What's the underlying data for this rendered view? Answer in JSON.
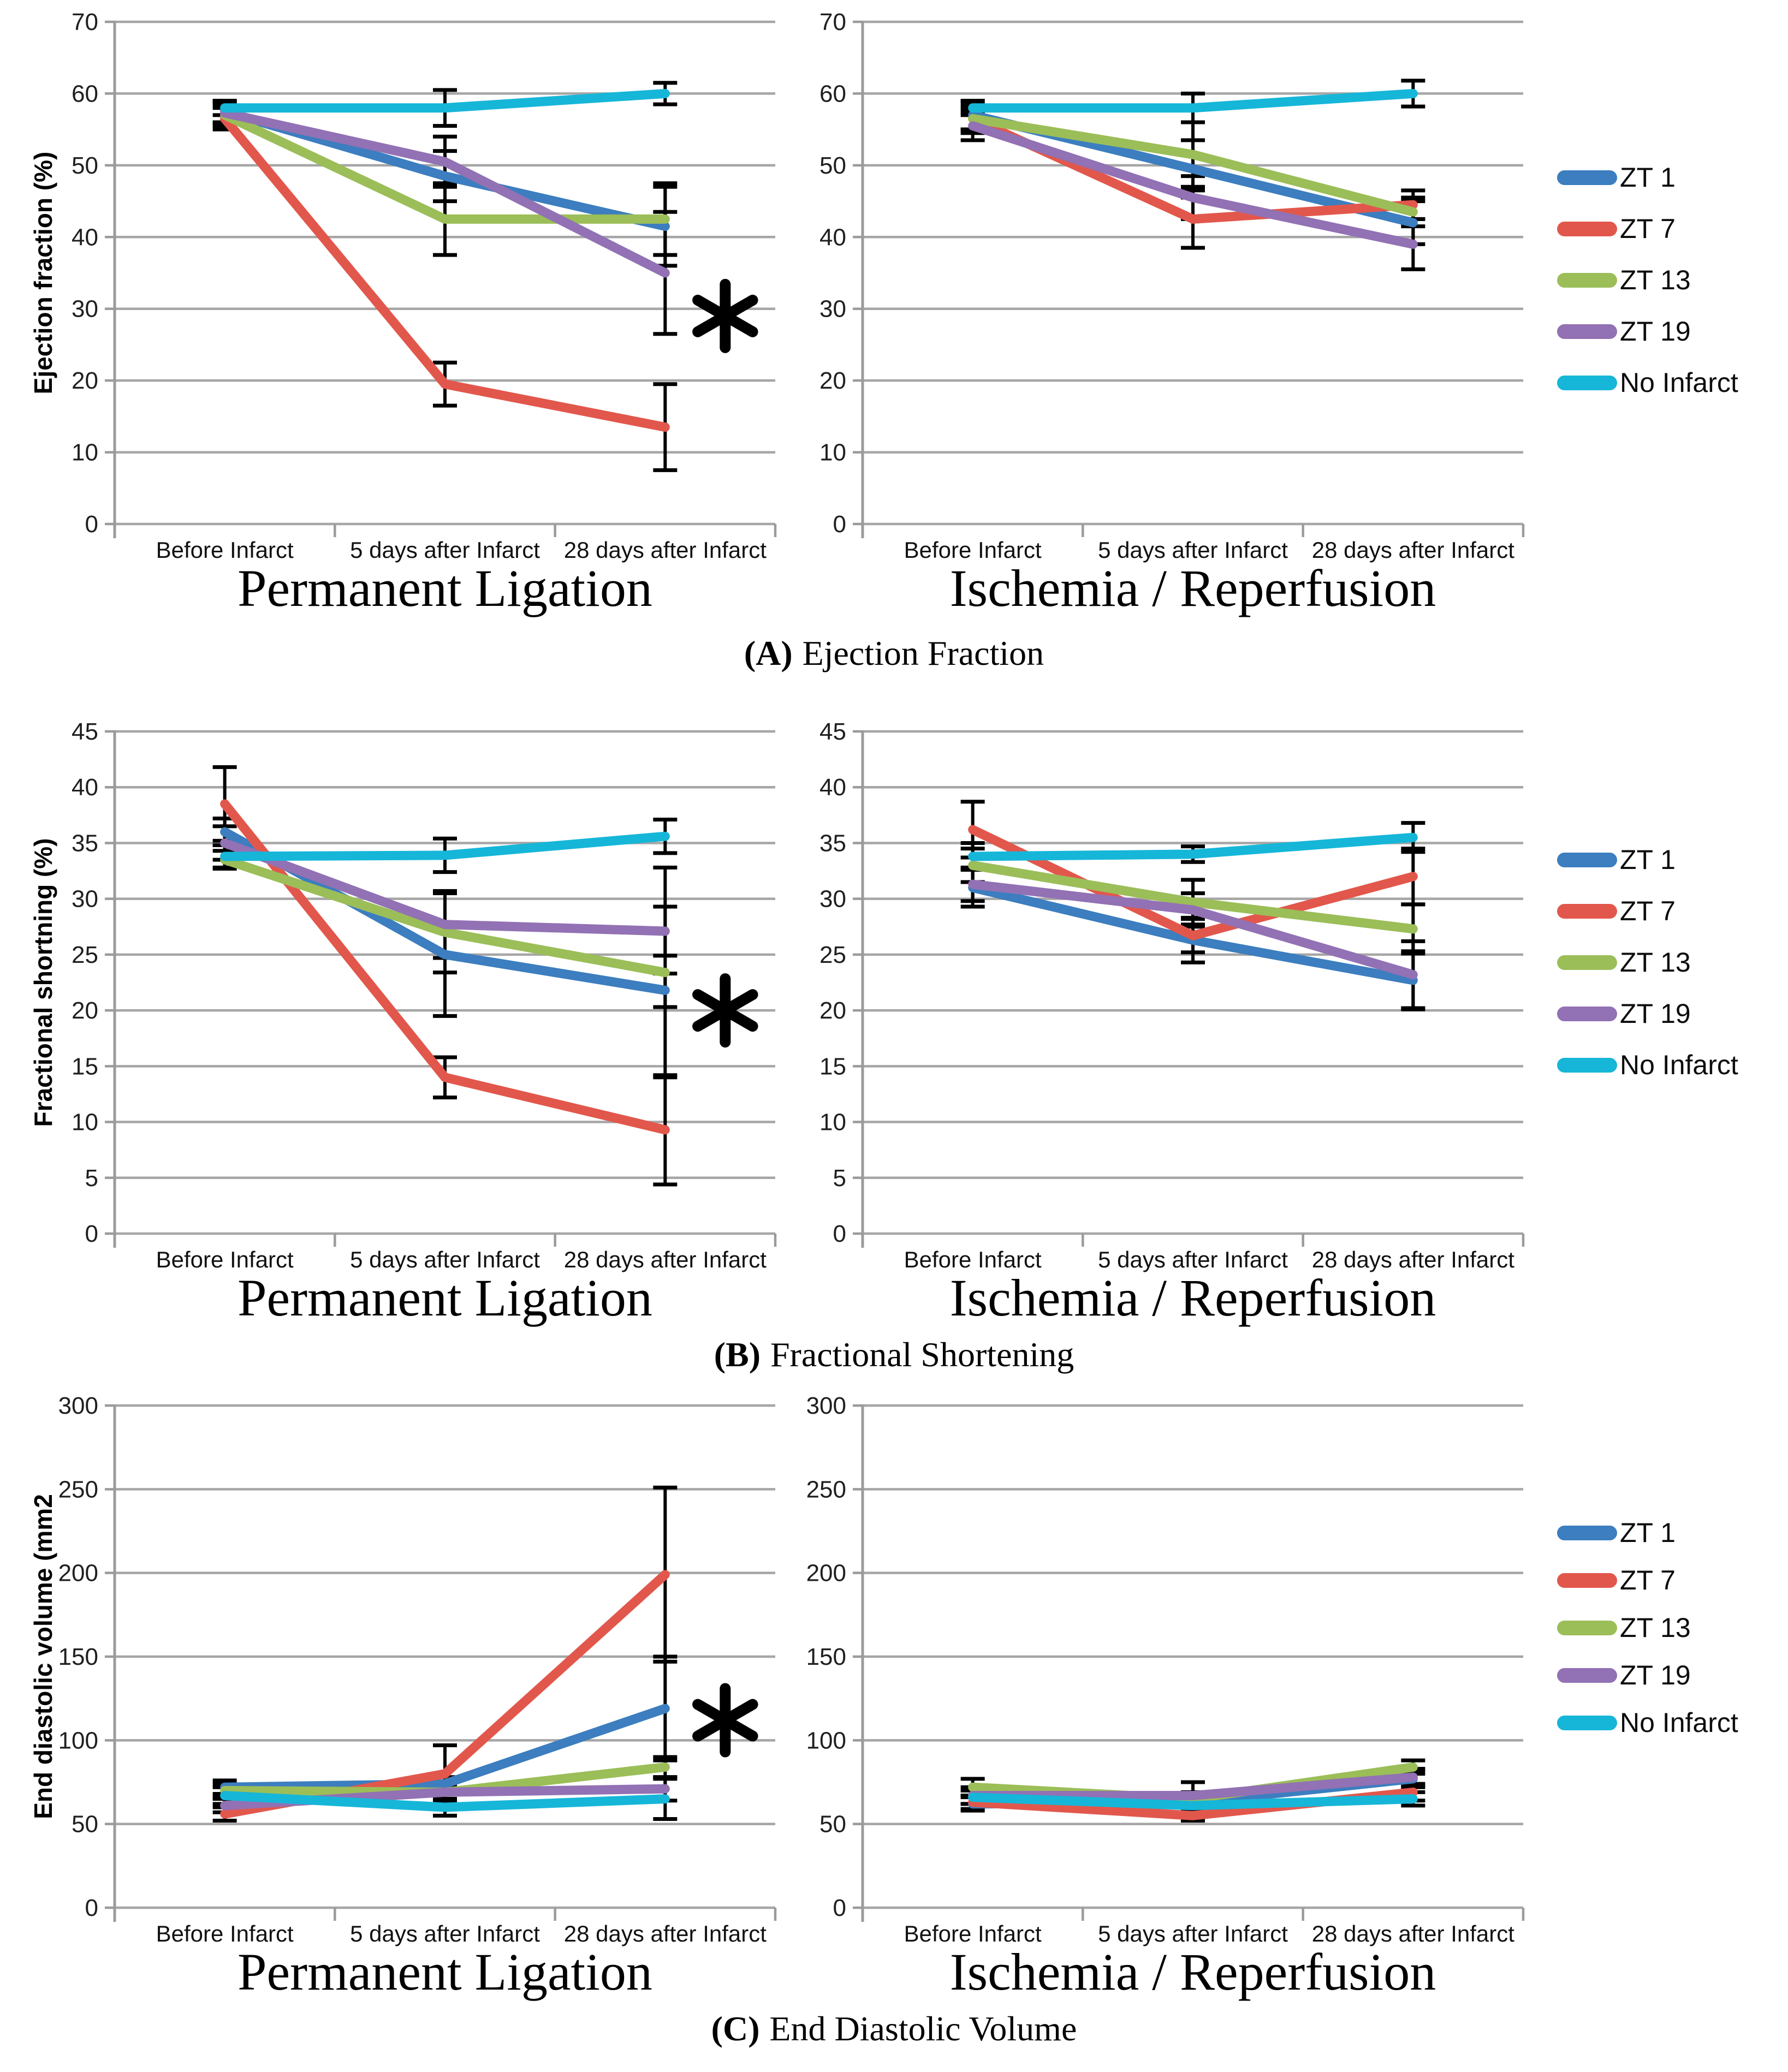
{
  "figure": {
    "captions": [
      {
        "open": "(",
        "letter": "A",
        "close": ")",
        "text": "Ejection Fraction"
      },
      {
        "open": "(",
        "letter": "B",
        "close": ")",
        "text": "Fractional Shortening"
      },
      {
        "open": "(",
        "letter": "C",
        "close": ")",
        "text": "End Diastolic Volume"
      }
    ],
    "legend": {
      "position": "right",
      "entries": [
        {
          "label": "ZT 1",
          "color": "#3C7EBF"
        },
        {
          "label": "ZT 7",
          "color": "#E2574C"
        },
        {
          "label": "ZT 13",
          "color": "#9BBE58"
        },
        {
          "label": "ZT 19",
          "color": "#9271B4"
        },
        {
          "label": "No Infarct",
          "color": "#16B6D8"
        }
      ]
    },
    "colors": {
      "grid": "#A6A6A6",
      "axis": "#9B9B9B",
      "error_bar": "#000000",
      "tick_text": "#1f1f1f",
      "title_text": "#000000"
    }
  },
  "chart_data": [
    {
      "type": "line",
      "panel": "A",
      "panel_caption": "Ejection Fraction",
      "title": "Permanent Ligation",
      "ylabel": "Ejection fraction (%)",
      "ylim": [
        0,
        70
      ],
      "yticks": [
        0,
        10,
        20,
        30,
        40,
        50,
        60,
        70
      ],
      "grid": true,
      "categories": [
        "Before Infarct",
        "5 days after Infarct",
        "28 days after Infarct"
      ],
      "series": [
        {
          "name": "ZT 1",
          "color": "#3C7EBF",
          "values": [
            57.5,
            48.5,
            41.5
          ],
          "errors": [
            1.5,
            3.5,
            5.5
          ]
        },
        {
          "name": "ZT 7",
          "color": "#E2574C",
          "values": [
            56.5,
            19.5,
            13.5
          ],
          "errors": [
            1.5,
            3,
            6
          ]
        },
        {
          "name": "ZT 13",
          "color": "#9BBE58",
          "values": [
            57,
            42.5,
            42.5
          ],
          "errors": [
            1.5,
            5,
            5
          ]
        },
        {
          "name": "ZT 19",
          "color": "#9271B4",
          "values": [
            57.3,
            50.5,
            35
          ],
          "errors": [
            1.5,
            3.5,
            8.5
          ]
        },
        {
          "name": "No Infarct",
          "color": "#16B6D8",
          "values": [
            58,
            58,
            60
          ],
          "errors": [
            1,
            2.5,
            1.5
          ]
        }
      ],
      "annotation": {
        "symbol": "*",
        "at_category": "28 days after Infarct",
        "y": 29
      }
    },
    {
      "type": "line",
      "panel": "A",
      "panel_caption": "Ejection Fraction",
      "title": "Ischemia / Reperfusion",
      "ylabel": null,
      "ylim": [
        0,
        70
      ],
      "yticks": [
        0,
        10,
        20,
        30,
        40,
        50,
        60,
        70
      ],
      "grid": true,
      "categories": [
        "Before Infarct",
        "5 days after Infarct",
        "28 days after Infarct"
      ],
      "series": [
        {
          "name": "ZT 1",
          "color": "#3C7EBF",
          "values": [
            57,
            49.5,
            42
          ],
          "errors": [
            2,
            4,
            3
          ]
        },
        {
          "name": "ZT 7",
          "color": "#E2574C",
          "values": [
            56.5,
            42.5,
            44.5
          ],
          "errors": [
            2,
            4,
            2
          ]
        },
        {
          "name": "ZT 13",
          "color": "#9BBE58",
          "values": [
            56.5,
            51.5,
            43.5
          ],
          "errors": [
            1.5,
            4.5,
            2
          ]
        },
        {
          "name": "ZT 19",
          "color": "#9271B4",
          "values": [
            55.5,
            45.5,
            39
          ],
          "errors": [
            2,
            3,
            3.5
          ]
        },
        {
          "name": "No Infarct",
          "color": "#16B6D8",
          "values": [
            58,
            58,
            60
          ],
          "errors": [
            1,
            2,
            1.8
          ]
        }
      ],
      "annotation": null
    },
    {
      "type": "line",
      "panel": "B",
      "panel_caption": "Fractional Shortening",
      "title": "Permanent Ligation",
      "ylabel": "Fractional shortning (%)",
      "ylim": [
        0,
        45
      ],
      "yticks": [
        0,
        5,
        10,
        15,
        20,
        25,
        30,
        35,
        40,
        45
      ],
      "grid": true,
      "categories": [
        "Before Infarct",
        "5 days after Infarct",
        "28 days after Infarct"
      ],
      "series": [
        {
          "name": "ZT 1",
          "color": "#3C7EBF",
          "values": [
            36,
            25,
            21.8
          ],
          "errors": [
            1.2,
            5.5,
            1.5
          ]
        },
        {
          "name": "ZT 7",
          "color": "#E2574C",
          "values": [
            38.5,
            14,
            9.3
          ],
          "errors": [
            3.3,
            1.8,
            4.9
          ]
        },
        {
          "name": "ZT 13",
          "color": "#9BBE58",
          "values": [
            33.5,
            27,
            23.4
          ],
          "errors": [
            0.8,
            3.6,
            9.4
          ]
        },
        {
          "name": "ZT 19",
          "color": "#9271B4",
          "values": [
            35,
            27.7,
            27.1
          ],
          "errors": [
            1.5,
            3,
            2.2
          ]
        },
        {
          "name": "No Infarct",
          "color": "#16B6D8",
          "values": [
            33.8,
            33.9,
            35.6
          ],
          "errors": [
            1,
            1.5,
            1.5
          ]
        }
      ],
      "annotation": {
        "symbol": "*",
        "at_category": "28 days after Infarct",
        "y": 20
      }
    },
    {
      "type": "line",
      "panel": "B",
      "panel_caption": "Fractional Shortening",
      "title": "Ischemia / Reperfusion",
      "ylabel": null,
      "ylim": [
        0,
        45
      ],
      "yticks": [
        0,
        5,
        10,
        15,
        20,
        25,
        30,
        35,
        40,
        45
      ],
      "grid": true,
      "categories": [
        "Before Infarct",
        "5 days after Infarct",
        "28 days after Infarct"
      ],
      "series": [
        {
          "name": "ZT 1",
          "color": "#3C7EBF",
          "values": [
            31,
            26.3,
            22.7
          ],
          "errors": [
            1.7,
            2,
            2.6
          ]
        },
        {
          "name": "ZT 7",
          "color": "#E2574C",
          "values": [
            36.2,
            26.7,
            32
          ],
          "errors": [
            2.5,
            1.5,
            2.5
          ]
        },
        {
          "name": "ZT 13",
          "color": "#9BBE58",
          "values": [
            33,
            29.7,
            27.3
          ],
          "errors": [
            1.5,
            2,
            2.2
          ]
        },
        {
          "name": "ZT 19",
          "color": "#9271B4",
          "values": [
            31.3,
            29,
            23.2
          ],
          "errors": [
            1.5,
            1.5,
            3
          ]
        },
        {
          "name": "No Infarct",
          "color": "#16B6D8",
          "values": [
            33.8,
            34,
            35.5
          ],
          "errors": [
            1.2,
            0.7,
            1.3
          ]
        }
      ],
      "annotation": null
    },
    {
      "type": "line",
      "panel": "C",
      "panel_caption": "End Diastolic Volume",
      "title": "Permanent Ligation",
      "ylabel": "End diastolic volume (mm2",
      "ylim": [
        0,
        300
      ],
      "yticks": [
        0,
        50,
        100,
        150,
        200,
        250,
        300
      ],
      "grid": true,
      "categories": [
        "Before Infarct",
        "5 days after Infarct",
        "28 days after Infarct"
      ],
      "series": [
        {
          "name": "ZT 1",
          "color": "#3C7EBF",
          "values": [
            72,
            74,
            119
          ],
          "errors": [
            4,
            4,
            31
          ]
        },
        {
          "name": "ZT 7",
          "color": "#E2574C",
          "values": [
            56,
            80,
            199
          ],
          "errors": [
            4,
            17,
            52
          ]
        },
        {
          "name": "ZT 13",
          "color": "#9BBE58",
          "values": [
            70,
            69,
            84
          ],
          "errors": [
            4,
            4,
            6
          ]
        },
        {
          "name": "ZT 19",
          "color": "#9271B4",
          "values": [
            61,
            69,
            71
          ],
          "errors": [
            4,
            4,
            7
          ]
        },
        {
          "name": "No Infarct",
          "color": "#16B6D8",
          "values": [
            67,
            60,
            65
          ],
          "errors": [
            5,
            5,
            12
          ]
        }
      ],
      "annotation": {
        "symbol": "*",
        "at_category": "28 days after Infarct",
        "y": 112
      }
    },
    {
      "type": "line",
      "panel": "C",
      "panel_caption": "End Diastolic Volume",
      "title": "Ischemia / Reperfusion",
      "ylabel": null,
      "ylim": [
        0,
        300
      ],
      "yticks": [
        0,
        50,
        100,
        150,
        200,
        250,
        300
      ],
      "grid": true,
      "categories": [
        "Before Infarct",
        "5 days after Infarct",
        "28 days after Infarct"
      ],
      "series": [
        {
          "name": "ZT 1",
          "color": "#3C7EBF",
          "values": [
            62,
            63,
            77
          ],
          "errors": [
            4,
            4,
            5
          ]
        },
        {
          "name": "ZT 7",
          "color": "#E2574C",
          "values": [
            63,
            55,
            69
          ],
          "errors": [
            4,
            3,
            5
          ]
        },
        {
          "name": "ZT 13",
          "color": "#9BBE58",
          "values": [
            72,
            65,
            84
          ],
          "errors": [
            5,
            4,
            4
          ]
        },
        {
          "name": "ZT 19",
          "color": "#9271B4",
          "values": [
            67,
            67,
            78
          ],
          "errors": [
            5,
            8,
            5
          ]
        },
        {
          "name": "No Infarct",
          "color": "#16B6D8",
          "values": [
            66,
            61,
            65
          ],
          "errors": [
            4,
            4,
            4
          ]
        }
      ],
      "annotation": null
    }
  ]
}
